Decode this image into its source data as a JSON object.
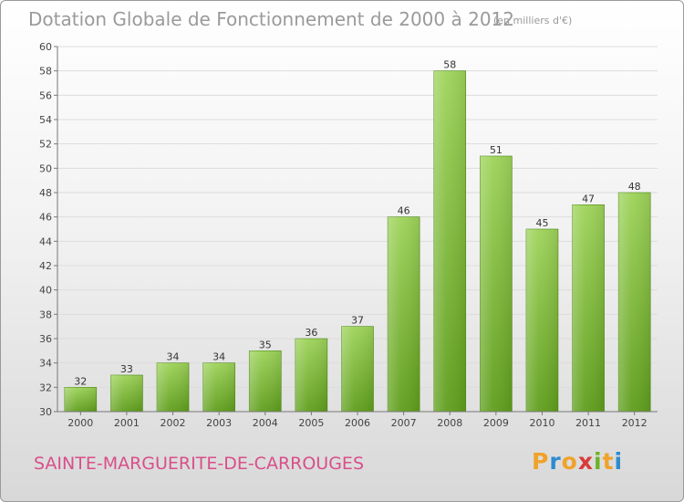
{
  "chart_data": {
    "type": "bar",
    "title": "Dotation Globale de Fonctionnement de 2000 à 2012",
    "unit_note": "(en milliers d'€)",
    "categories": [
      "2000",
      "2001",
      "2002",
      "2003",
      "2004",
      "2005",
      "2006",
      "2007",
      "2008",
      "2009",
      "2010",
      "2011",
      "2012"
    ],
    "values": [
      32,
      33,
      34,
      34,
      35,
      36,
      37,
      46,
      58,
      51,
      45,
      47,
      48
    ],
    "data_labels": [
      "32",
      "33",
      "34",
      "34",
      "35",
      "36",
      "37",
      "46",
      "58",
      "51",
      "45",
      "47",
      "48"
    ],
    "ylim": [
      30,
      60
    ],
    "yticks": [
      "30",
      "32",
      "34",
      "36",
      "38",
      "40",
      "42",
      "44",
      "46",
      "48",
      "50",
      "52",
      "54",
      "56",
      "58",
      "60"
    ],
    "grid": true,
    "bar_color_top": "#9ed35a",
    "bar_color_bottom": "#5f9e1c"
  },
  "footer": {
    "commune": "SAINTE-MARGUERITE-DE-CARROUGES",
    "logo_letters": [
      "P",
      "r",
      "o",
      "x",
      "i",
      "t",
      "i"
    ],
    "logo_colors": [
      "#f0a22a",
      "#2e8bd0",
      "#f0a22a",
      "#d83a3a",
      "#6cb32a",
      "#f0a22a",
      "#2e8bd0"
    ]
  }
}
